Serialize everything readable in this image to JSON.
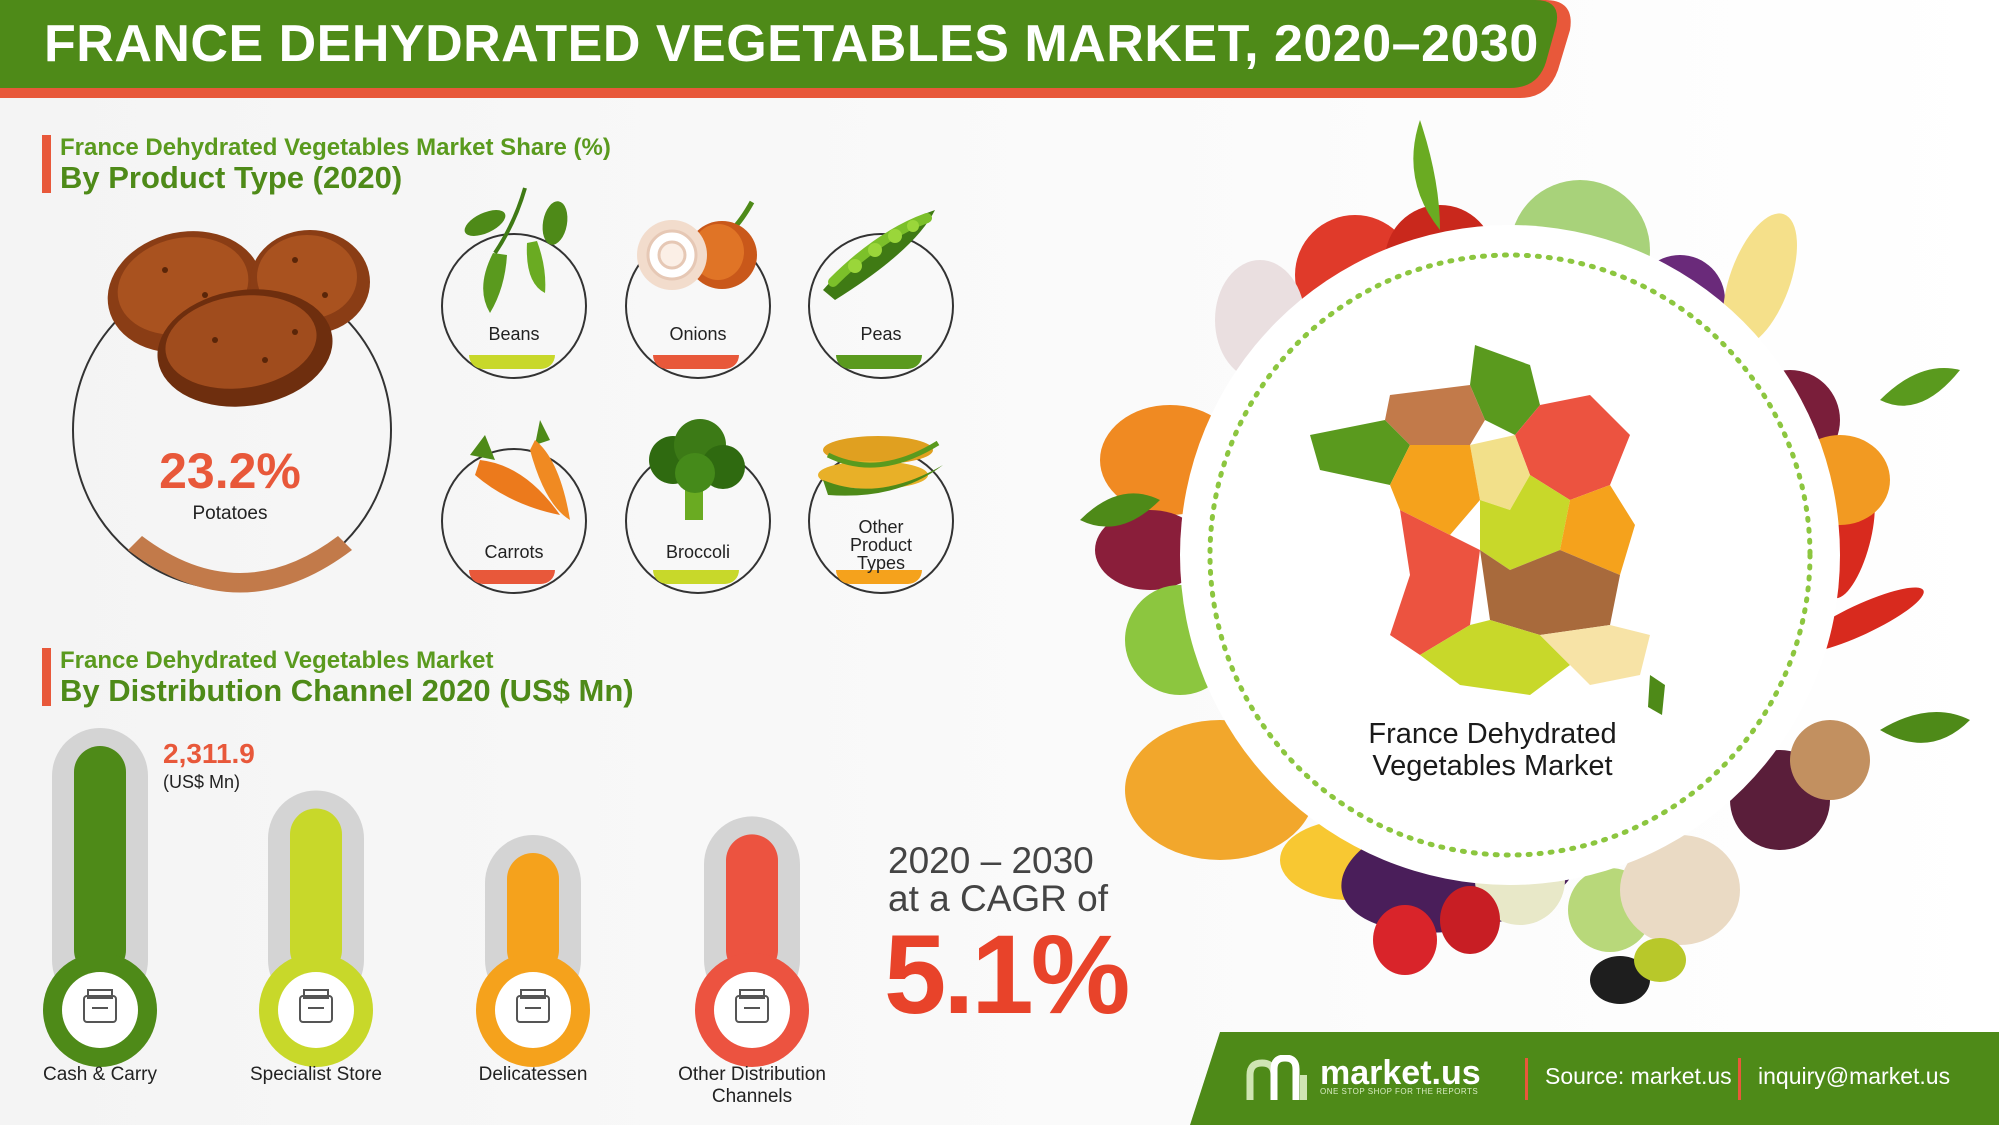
{
  "header": {
    "title": "FRANCE DEHYDRATED VEGETABLES MARKET, 2020–2030"
  },
  "colors": {
    "green_dark": "#4e8a18",
    "green_header": "#5a9a1e",
    "orange_red": "#e8583a",
    "yellow_green": "#c8d82a",
    "orange": "#f5a21c",
    "red": "#ec5340",
    "brown": "#c27a4a"
  },
  "product_section": {
    "subtitle": "France Dehydrated Vegetables Market Share (%)",
    "title": "By Product Type (2020)",
    "featured": {
      "value": "23.2%",
      "name": "Potatoes"
    },
    "products": [
      {
        "name": "Beans",
        "color": "#c8d82a",
        "icon": "beans-icon"
      },
      {
        "name": "Onions",
        "color": "#e8583a",
        "icon": "onion-icon"
      },
      {
        "name": "Peas",
        "color": "#5a9a1e",
        "icon": "peas-icon"
      },
      {
        "name": "Carrots",
        "color": "#e8583a",
        "icon": "carrot-icon"
      },
      {
        "name": "Broccoli",
        "color": "#c8d82a",
        "icon": "broccoli-icon"
      },
      {
        "name": "Other Product Types",
        "color": "#f5a21c",
        "icon": "corn-icon"
      }
    ]
  },
  "distribution_section": {
    "subtitle": "France Dehydrated Vegetables Market",
    "title": "By Distribution Channel 2020 (US$ Mn)",
    "top_value": "2,311.9",
    "top_unit": "(US$ Mn)"
  },
  "cagr": {
    "range": "2020 – 2030",
    "text": "at a CAGR of",
    "value": "5.1%"
  },
  "map": {
    "label": "France Dehydrated Vegetables Market"
  },
  "footer": {
    "brand": "market.us",
    "tagline": "ONE STOP SHOP FOR THE REPORTS",
    "source": "Source: market.us",
    "email": "inquiry@market.us"
  },
  "chart_data": {
    "type": "bar",
    "title": "By Distribution Channel 2020 (US$ Mn)",
    "categories": [
      "Cash & Carry",
      "Specialist Store",
      "Delicatessen",
      "Other Distribution Channels"
    ],
    "values": [
      2311.9,
      1590,
      1075,
      1290
    ],
    "colors": [
      "#4e8a18",
      "#c8d82a",
      "#f5a21c",
      "#ec5340"
    ],
    "icons": [
      "wallet-icon",
      "store-icon",
      "shop-icon",
      "warehouse-icon"
    ],
    "ylim": [
      0,
      2311.9
    ],
    "grid": false
  }
}
